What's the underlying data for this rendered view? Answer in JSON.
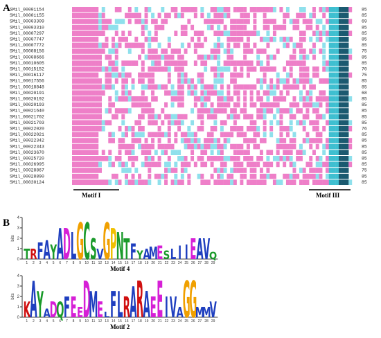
{
  "panel_a": {
    "label": "A",
    "rows": [
      {
        "id": "SMil_00001154",
        "length": 85
      },
      {
        "id": "SMil_00001155",
        "length": 85
      },
      {
        "id": "SMil_00003309",
        "length": 69
      },
      {
        "id": "SMil_00003310",
        "length": 85
      },
      {
        "id": "SMil_00007297",
        "length": 85
      },
      {
        "id": "SMil_00007747",
        "length": 85
      },
      {
        "id": "SMil_00007772",
        "length": 85
      },
      {
        "id": "SMil_00008156",
        "length": 75
      },
      {
        "id": "SMil_00008666",
        "length": 85
      },
      {
        "id": "SMil_00010605",
        "length": 85
      },
      {
        "id": "SMil_00015152",
        "length": 70
      },
      {
        "id": "SMil_00016117",
        "length": 75
      },
      {
        "id": "SMil_00017556",
        "length": 85
      },
      {
        "id": "SMil_00018848",
        "length": 85
      },
      {
        "id": "SMil_00020191",
        "length": 68
      },
      {
        "id": "SMil_00020192",
        "length": 85
      },
      {
        "id": "SMil_00020193",
        "length": 85
      },
      {
        "id": "SMil_00021640",
        "length": 85
      },
      {
        "id": "SMil_00021702",
        "length": 85
      },
      {
        "id": "SMil_00021703",
        "length": 85
      },
      {
        "id": "SMil_00022020",
        "length": 76
      },
      {
        "id": "SMil_00022021",
        "length": 85
      },
      {
        "id": "SMil_00022342",
        "length": 85
      },
      {
        "id": "SMil_00022343",
        "length": 85
      },
      {
        "id": "SMil_00023670",
        "length": 85
      },
      {
        "id": "SMil_00025720",
        "length": 85
      },
      {
        "id": "SMil_00026995",
        "length": 85
      },
      {
        "id": "SMil_00028867",
        "length": 75
      },
      {
        "id": "SMil_00028890",
        "length": 85
      },
      {
        "id": "SMil_00030124",
        "length": 85
      }
    ],
    "motif_labels": [
      "Motif I",
      "Motif III"
    ]
  },
  "panel_b": {
    "label": "B",
    "residue_colors": {
      "A": "#1f3fbf",
      "D": "#d61fd6",
      "E": "#d61fd6",
      "L": "#1f3fbf",
      "I": "#1f3fbf",
      "V": "#1f3fbf",
      "M": "#1f3fbf",
      "F": "#1f3fbf",
      "G": "#f0a000",
      "P": "#f0c000",
      "C": "#1a9a2a",
      "S": "#1a9a2a",
      "T": "#1a9a2a",
      "N": "#1a9a2a",
      "Q": "#1a9a2a",
      "Y": "#1a9a2a",
      "R": "#d01010",
      "K": "#d01010"
    },
    "logos": [
      {
        "title": "Motif 4",
        "ylabel": "bits",
        "yticks": [
          0,
          1,
          2,
          3,
          4
        ],
        "ylim": [
          0,
          4
        ],
        "positions": [
          1,
          2,
          3,
          4,
          5,
          6,
          7,
          8,
          9,
          10,
          11,
          12,
          13,
          14,
          15,
          16,
          17,
          18,
          19,
          20,
          21,
          22,
          23,
          24,
          25,
          26,
          27,
          28,
          29
        ],
        "letters": [
          "T",
          "R",
          "F",
          "A",
          "Y",
          "A",
          "D",
          "L",
          "G",
          "C",
          "S",
          "V",
          "G",
          "P",
          "N",
          "T",
          "F",
          "Y",
          "A",
          "M",
          "E",
          "S",
          "L",
          "I",
          "I",
          "E",
          "A",
          "V",
          "Q"
        ],
        "heights": [
          1.0,
          1.0,
          1.6,
          1.8,
          1.4,
          3.0,
          3.0,
          2.6,
          3.5,
          3.5,
          2.0,
          1.0,
          3.5,
          3.0,
          2.6,
          2.0,
          1.5,
          0.8,
          1.0,
          1.2,
          1.3,
          0.8,
          1.0,
          1.3,
          1.4,
          2.0,
          2.0,
          2.0,
          0.7
        ]
      },
      {
        "title": "Motif 2",
        "ylabel": "bits",
        "yticks": [
          0,
          1,
          2,
          3,
          4
        ],
        "ylim": [
          0,
          4
        ],
        "positions": [
          1,
          2,
          3,
          4,
          5,
          6,
          7,
          8,
          9,
          10,
          11,
          12,
          13,
          14,
          15,
          16,
          17,
          18,
          19,
          20,
          21,
          22,
          23,
          24,
          25,
          26,
          27,
          28,
          29
        ],
        "letters": [
          "K",
          "A",
          "Y",
          "A",
          "D",
          "Q",
          "F",
          "E",
          "E",
          "D",
          "M",
          "E",
          "L",
          "F",
          "L",
          "R",
          "A",
          "R",
          "A",
          "E",
          "E",
          "I",
          "V",
          "A",
          "G",
          "G",
          "M",
          "M",
          "V"
        ],
        "heights": [
          1.5,
          3.5,
          2.5,
          0.8,
          1.5,
          1.5,
          2.0,
          2.0,
          1.0,
          3.5,
          2.5,
          1.5,
          0.5,
          2.5,
          2.5,
          2.0,
          3.0,
          3.5,
          2.5,
          2.0,
          3.5,
          2.0,
          2.0,
          1.0,
          3.5,
          3.5,
          1.0,
          1.0,
          1.5
        ]
      }
    ]
  }
}
